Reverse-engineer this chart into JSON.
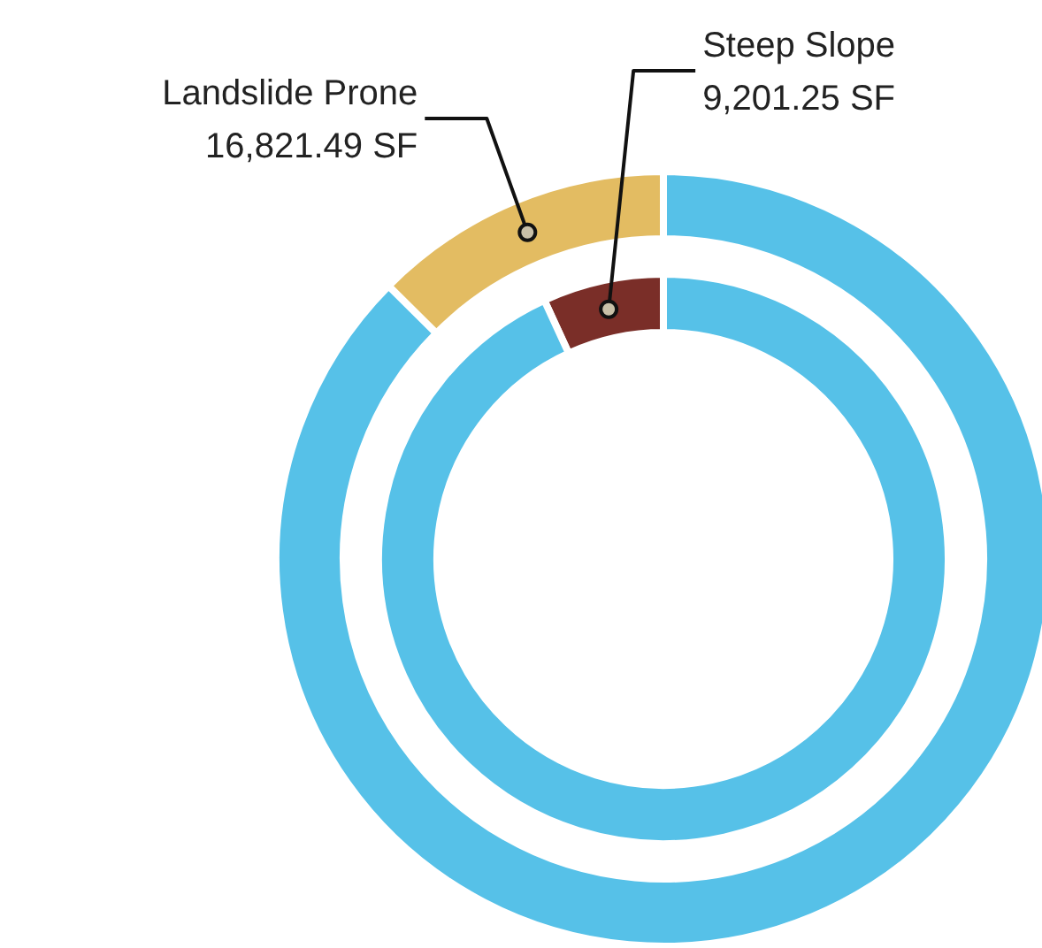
{
  "chart_data": [
    {
      "type": "donut",
      "categories": [
        "Landslide Prone",
        null
      ],
      "values": [
        16821.49,
        117180
      ],
      "colors": [
        "#e3bc62",
        "#56c1e8"
      ],
      "value_labels": [
        "16,821.49 SF",
        null
      ]
    },
    {
      "type": "donut",
      "categories": [
        "Steep Slope",
        null
      ],
      "values": [
        9201.25,
        124800
      ],
      "colors": [
        "#7a2e28",
        "#56c1e8"
      ],
      "value_labels": [
        "9,201.25 SF",
        null
      ]
    }
  ]
}
